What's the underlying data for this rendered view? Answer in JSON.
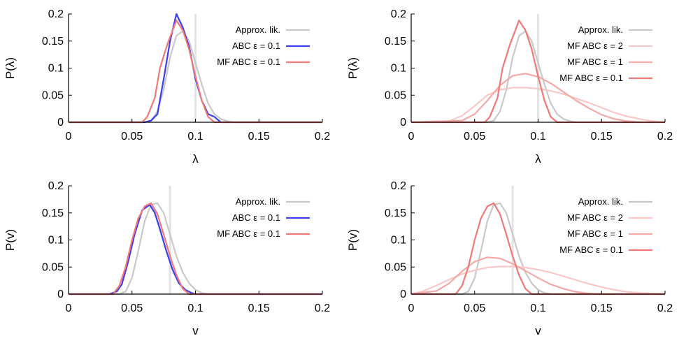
{
  "chart_data": [
    {
      "type": "line",
      "title": "",
      "xlabel": "λ",
      "ylabel": "P(λ)",
      "xlim": [
        0,
        0.2
      ],
      "ylim": [
        0,
        0.2
      ],
      "xticks": [
        "0",
        "0.05",
        "0.1",
        "0.15",
        "0.2"
      ],
      "yticks": [
        "0",
        "0.05",
        "0.1",
        "0.15",
        "0.2"
      ],
      "true_value": 0.1,
      "legend_position": "top-right",
      "series": [
        {
          "name": "Approx. lik.",
          "color": "#c8c8c8",
          "x": [
            0,
            0.06,
            0.065,
            0.07,
            0.075,
            0.08,
            0.085,
            0.09,
            0.095,
            0.1,
            0.105,
            0.11,
            0.115,
            0.12,
            0.125,
            0.13,
            0.2
          ],
          "y": [
            0,
            0,
            0.003,
            0.02,
            0.06,
            0.12,
            0.16,
            0.168,
            0.15,
            0.11,
            0.07,
            0.035,
            0.015,
            0.006,
            0.002,
            0,
            0
          ]
        },
        {
          "name": "ABC ε = 0.1",
          "color": "#3c3cf0",
          "x": [
            0,
            0.06,
            0.065,
            0.07,
            0.075,
            0.08,
            0.085,
            0.09,
            0.095,
            0.1,
            0.105,
            0.11,
            0.115,
            0.12,
            0.2
          ],
          "y": [
            0,
            0,
            0.003,
            0.015,
            0.08,
            0.15,
            0.2,
            0.175,
            0.14,
            0.08,
            0.04,
            0.015,
            0.01,
            0,
            0
          ]
        },
        {
          "name": "MF ABC ε = 0.1",
          "color": "#f07878",
          "x": [
            0,
            0.058,
            0.062,
            0.068,
            0.072,
            0.078,
            0.085,
            0.09,
            0.095,
            0.1,
            0.105,
            0.11,
            0.115,
            0.2
          ],
          "y": [
            0,
            0,
            0.01,
            0.045,
            0.1,
            0.145,
            0.188,
            0.17,
            0.135,
            0.085,
            0.04,
            0.01,
            0,
            0
          ]
        }
      ]
    },
    {
      "type": "line",
      "title": "",
      "xlabel": "λ",
      "ylabel": "P(λ)",
      "xlim": [
        0,
        0.2
      ],
      "ylim": [
        0,
        0.2
      ],
      "xticks": [
        "0",
        "0.05",
        "0.1",
        "0.15",
        "0.2"
      ],
      "yticks": [
        "0",
        "0.05",
        "0.1",
        "0.15",
        "0.2"
      ],
      "true_value": 0.1,
      "legend_position": "top-right",
      "series": [
        {
          "name": "Approx. lik.",
          "color": "#c8c8c8",
          "x": [
            0,
            0.06,
            0.065,
            0.07,
            0.075,
            0.08,
            0.085,
            0.09,
            0.095,
            0.1,
            0.105,
            0.11,
            0.115,
            0.12,
            0.125,
            0.13,
            0.2
          ],
          "y": [
            0,
            0,
            0.003,
            0.02,
            0.06,
            0.12,
            0.16,
            0.168,
            0.15,
            0.11,
            0.07,
            0.035,
            0.015,
            0.006,
            0.002,
            0,
            0
          ]
        },
        {
          "name": "MF ABC ε = 2",
          "color": "#f8c8c8",
          "x": [
            0,
            0.03,
            0.04,
            0.05,
            0.06,
            0.07,
            0.08,
            0.09,
            0.1,
            0.11,
            0.12,
            0.13,
            0.14,
            0.15,
            0.16,
            0.17,
            0.18,
            0.19,
            0.2
          ],
          "y": [
            0,
            0.002,
            0.012,
            0.03,
            0.05,
            0.06,
            0.064,
            0.064,
            0.062,
            0.058,
            0.052,
            0.044,
            0.036,
            0.027,
            0.018,
            0.011,
            0.006,
            0.002,
            0
          ]
        },
        {
          "name": "MF ABC ε = 1",
          "color": "#f5a8a8",
          "x": [
            0,
            0.04,
            0.05,
            0.06,
            0.07,
            0.08,
            0.09,
            0.1,
            0.11,
            0.12,
            0.13,
            0.14,
            0.15,
            0.16,
            0.17,
            0.18,
            0.2
          ],
          "y": [
            0,
            0.003,
            0.015,
            0.04,
            0.068,
            0.086,
            0.09,
            0.084,
            0.072,
            0.056,
            0.04,
            0.026,
            0.014,
            0.006,
            0.002,
            0,
            0
          ]
        },
        {
          "name": "MF ABC ε = 0.1",
          "color": "#f07878",
          "x": [
            0,
            0.058,
            0.062,
            0.068,
            0.072,
            0.078,
            0.085,
            0.09,
            0.095,
            0.1,
            0.105,
            0.11,
            0.115,
            0.2
          ],
          "y": [
            0,
            0,
            0.01,
            0.045,
            0.1,
            0.145,
            0.188,
            0.17,
            0.135,
            0.085,
            0.04,
            0.01,
            0,
            0
          ]
        }
      ]
    },
    {
      "type": "line",
      "title": "",
      "xlabel": "v",
      "ylabel": "P(v)",
      "xlim": [
        0,
        0.2
      ],
      "ylim": [
        0,
        0.2
      ],
      "xticks": [
        "0",
        "0.05",
        "0.1",
        "0.15",
        "0.2"
      ],
      "yticks": [
        "0",
        "0.05",
        "0.1",
        "0.15",
        "0.2"
      ],
      "true_value": 0.08,
      "legend_position": "top-right",
      "series": [
        {
          "name": "Approx. lik.",
          "color": "#c8c8c8",
          "x": [
            0,
            0.04,
            0.045,
            0.05,
            0.055,
            0.06,
            0.065,
            0.07,
            0.075,
            0.08,
            0.085,
            0.09,
            0.095,
            0.1,
            0.105,
            0.11,
            0.2
          ],
          "y": [
            0,
            0,
            0.005,
            0.03,
            0.08,
            0.135,
            0.165,
            0.168,
            0.15,
            0.11,
            0.07,
            0.04,
            0.02,
            0.008,
            0.002,
            0,
            0
          ]
        },
        {
          "name": "ABC ε = 0.1",
          "color": "#3c3cf0",
          "x": [
            0,
            0.032,
            0.038,
            0.042,
            0.047,
            0.052,
            0.058,
            0.064,
            0.068,
            0.072,
            0.077,
            0.082,
            0.087,
            0.092,
            0.097,
            0.1,
            0.2
          ],
          "y": [
            0,
            0,
            0.005,
            0.018,
            0.06,
            0.11,
            0.155,
            0.165,
            0.15,
            0.12,
            0.08,
            0.045,
            0.02,
            0.008,
            0.002,
            0,
            0
          ]
        },
        {
          "name": "MF ABC ε = 0.1",
          "color": "#f07878",
          "x": [
            0,
            0.035,
            0.04,
            0.045,
            0.05,
            0.055,
            0.06,
            0.065,
            0.07,
            0.075,
            0.08,
            0.085,
            0.09,
            0.095,
            0.2
          ],
          "y": [
            0,
            0,
            0.015,
            0.05,
            0.1,
            0.14,
            0.162,
            0.168,
            0.148,
            0.11,
            0.07,
            0.035,
            0.01,
            0,
            0
          ]
        }
      ]
    },
    {
      "type": "line",
      "title": "",
      "xlabel": "v",
      "ylabel": "P(v)",
      "xlim": [
        0,
        0.2
      ],
      "ylim": [
        0,
        0.2
      ],
      "xticks": [
        "0",
        "0.05",
        "0.1",
        "0.15",
        "0.2"
      ],
      "yticks": [
        "0",
        "0.05",
        "0.1",
        "0.15",
        "0.2"
      ],
      "true_value": 0.08,
      "legend_position": "top-right",
      "series": [
        {
          "name": "Approx. lik.",
          "color": "#c8c8c8",
          "x": [
            0,
            0.04,
            0.045,
            0.05,
            0.055,
            0.06,
            0.065,
            0.07,
            0.075,
            0.08,
            0.085,
            0.09,
            0.095,
            0.1,
            0.105,
            0.11,
            0.2
          ],
          "y": [
            0,
            0,
            0.005,
            0.03,
            0.08,
            0.135,
            0.165,
            0.168,
            0.15,
            0.11,
            0.07,
            0.04,
            0.02,
            0.008,
            0.002,
            0,
            0
          ]
        },
        {
          "name": "MF ABC ε = 2",
          "color": "#f8c8c8",
          "x": [
            0,
            0.01,
            0.02,
            0.03,
            0.04,
            0.05,
            0.06,
            0.07,
            0.08,
            0.09,
            0.1,
            0.11,
            0.12,
            0.13,
            0.14,
            0.15,
            0.16,
            0.17,
            0.18,
            0.19,
            0.2
          ],
          "y": [
            0,
            0.006,
            0.016,
            0.027,
            0.037,
            0.044,
            0.049,
            0.051,
            0.051,
            0.049,
            0.045,
            0.04,
            0.033,
            0.026,
            0.019,
            0.013,
            0.008,
            0.004,
            0.002,
            0.001,
            0
          ]
        },
        {
          "name": "MF ABC ε = 1",
          "color": "#f5a8a8",
          "x": [
            0,
            0.02,
            0.03,
            0.04,
            0.05,
            0.06,
            0.07,
            0.08,
            0.09,
            0.1,
            0.11,
            0.12,
            0.13,
            0.14,
            0.15,
            0.2
          ],
          "y": [
            0,
            0.006,
            0.02,
            0.042,
            0.06,
            0.068,
            0.066,
            0.056,
            0.043,
            0.03,
            0.018,
            0.01,
            0.004,
            0.001,
            0,
            0
          ]
        },
        {
          "name": "MF ABC ε = 0.1",
          "color": "#f07878",
          "x": [
            0,
            0.035,
            0.04,
            0.045,
            0.05,
            0.055,
            0.06,
            0.065,
            0.07,
            0.075,
            0.08,
            0.085,
            0.09,
            0.095,
            0.2
          ],
          "y": [
            0,
            0,
            0.015,
            0.05,
            0.1,
            0.14,
            0.162,
            0.168,
            0.148,
            0.11,
            0.07,
            0.035,
            0.01,
            0,
            0
          ]
        }
      ]
    }
  ]
}
